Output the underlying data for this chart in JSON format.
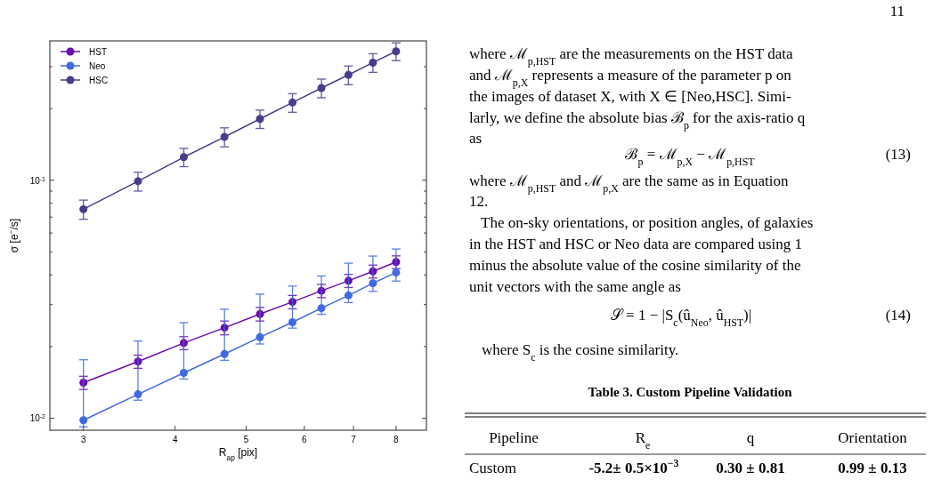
{
  "chart_data": {
    "type": "line",
    "xlabel": "R$_{ap}$ [pix]",
    "ylabel": "σ [e$^{−}$/s]",
    "x": [
      3,
      3.56,
      4.11,
      4.67,
      5.22,
      5.78,
      6.33,
      6.89,
      7.44,
      8
    ],
    "series": [
      {
        "name": "HST",
        "color": "#6a0dad",
        "values": [
          0.0141,
          0.0173,
          0.0207,
          0.024,
          0.0274,
          0.0308,
          0.0343,
          0.0378,
          0.0414,
          0.0453
        ],
        "errors": [
          0.0009,
          0.0011,
          0.0013,
          0.0016,
          0.0018,
          0.002,
          0.0022,
          0.0024,
          0.0026,
          0.0028
        ]
      },
      {
        "name": "Neo",
        "color": "#4169e1",
        "values": [
          0.0098,
          0.0126,
          0.0155,
          0.0186,
          0.0219,
          0.0253,
          0.029,
          0.0328,
          0.0369,
          0.0409
        ],
        "errors": [
          [
            0.0092,
            0.0176
          ],
          [
            0.0119,
            0.0211
          ],
          [
            0.0146,
            0.0252
          ],
          [
            0.0175,
            0.0287
          ],
          [
            0.0205,
            0.0332
          ],
          [
            0.0239,
            0.0359
          ],
          [
            0.0273,
            0.0396
          ],
          [
            0.0306,
            0.0448
          ],
          [
            0.0341,
            0.048
          ],
          [
            0.0377,
            0.0514
          ]
        ]
      },
      {
        "name": "HSC",
        "color": "#483d8b",
        "values": [
          0.0755,
          0.099,
          0.125,
          0.152,
          0.181,
          0.212,
          0.244,
          0.277,
          0.312,
          0.348
        ],
        "errors": [
          0.007,
          0.009,
          0.011,
          0.014,
          0.016,
          0.019,
          0.022,
          0.025,
          0.028,
          0.03
        ]
      }
    ],
    "xlim": [
      2.7,
      8.8
    ],
    "ylim": [
      0.0089,
      0.385
    ],
    "log": "xy",
    "xticks": [
      3,
      4,
      5,
      6,
      7,
      8
    ],
    "yticks": [
      {
        "value": 0.01,
        "label": "10$^{-2}$"
      },
      {
        "value": 0.02,
        "label": null
      },
      {
        "value": 0.03,
        "label": null
      },
      {
        "value": 0.04,
        "label": null
      },
      {
        "value": 0.05,
        "label": null
      },
      {
        "value": 0.06,
        "label": null
      },
      {
        "value": 0.07,
        "label": null
      },
      {
        "value": 0.08,
        "label": null
      },
      {
        "value": 0.09,
        "label": null
      },
      {
        "value": 0.1,
        "label": "10$^{-1}$"
      },
      {
        "value": 0.2,
        "label": null
      },
      {
        "value": 0.3,
        "label": null
      }
    ],
    "marker": "circle",
    "legend": "top left",
    "annotations": [
      "11",
      "where ℳ$_{p,HST}$ are the measurements on the HST data",
      "and ℳ$_{p,X}$ represents a measure of the parameter p on",
      "the images of dataset X, with X ∈ [Neo,HSC]. Simi-",
      "larly, we define the absolute bias ℬ$_{p}$ for the axis-ratio q",
      "as",
      "ℬ$_{p}$ = ℳ$_{p,X}$ − ℳ$_{p,HST}$",
      "(13)",
      "where ℳ$_{p,HST}$ and ℳ$_{p,X}$ are the same as in Equation",
      "12.",
      "The on-sky orientations, or position angles, of galaxies",
      "in the HST and HSC or Neo data are compared using 1",
      "minus the absolute value of the cosine similarity of the",
      "unit vectors with the same angle as",
      "𝒮 = 1 − |S$_{c}$(û$_{Neo}$, û$_{HST}$)|",
      "(14)",
      "where S$_{c}$ is the cosine similarity.",
      "Table 3. Custom Pipeline Validation",
      "Pipeline",
      "R$_{e}$",
      "q",
      "Orientation",
      "Custom",
      "-5.2± 0.5×10$^{−3}$",
      "0.30 ± 0.81",
      "0.99 ± 0.13"
    ]
  }
}
